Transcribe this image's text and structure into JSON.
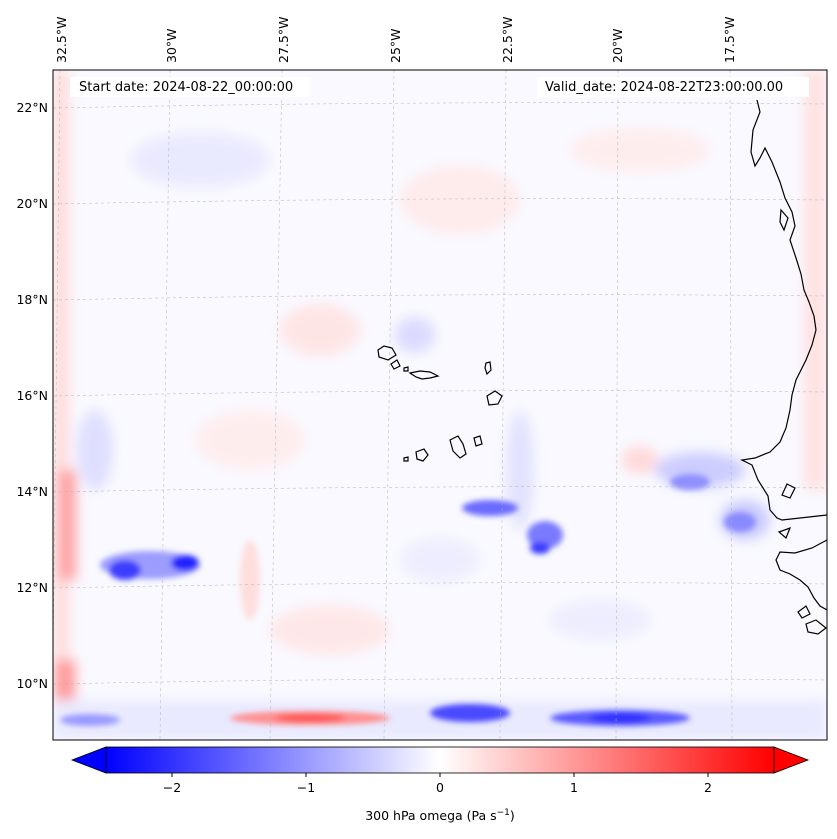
{
  "map": {
    "start_date_text": "Start date: 2024-08-22_00:00:00",
    "valid_date_text": "Valid_date: 2024-08-22T23:00:00.00",
    "lon_labels": [
      "32.5°W",
      "30°W",
      "27.5°W",
      "25°W",
      "22.5°W",
      "20°W",
      "17.5°W"
    ],
    "lat_labels": [
      "22°N",
      "20°N",
      "18°N",
      "16°N",
      "14°N",
      "12°N",
      "10°N"
    ],
    "field": "300 hPa omega"
  },
  "colorbar": {
    "ticks": [
      "−2",
      "−1",
      "0",
      "1",
      "2"
    ],
    "label_main": "300 hPa omega (Pa s",
    "label_sup": "−1",
    "label_close": ")",
    "min_color": "#0000ff",
    "mid_color": "#ffffff",
    "max_color": "#ff0000"
  },
  "colors": {
    "coast": "#000000",
    "grid": "#b0b0b0",
    "blue_anom": "#3b3bff",
    "red_anom": "#ff4a4a"
  }
}
